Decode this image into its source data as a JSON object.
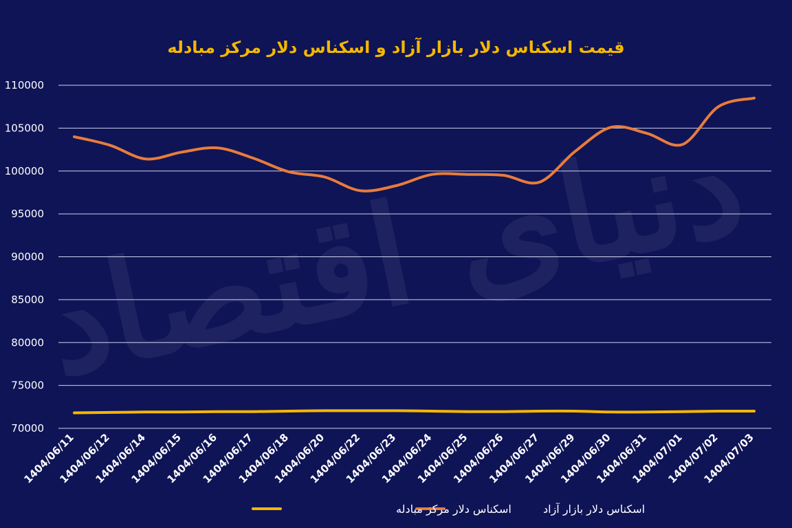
{
  "chart_data": {
    "type": "line",
    "title": "قیمت اسکناس دلار بازار آزاد و اسکناس دلار مرکز مبادله",
    "xlabel": "",
    "ylabel": "",
    "ylim": [
      70000,
      110000
    ],
    "yticks": [
      "110000",
      "105000",
      "100000",
      "95000",
      "90000",
      "85000",
      "80000",
      "75000",
      "70000"
    ],
    "categories": [
      "1404/06/11",
      "1404/06/12",
      "1404/06/14",
      "1404/06/15",
      "1404/06/16",
      "1404/06/17",
      "1404/06/18",
      "1404/06/20",
      "1404/06/22",
      "1404/06/23",
      "1404/06/24",
      "1404/06/25",
      "1404/06/26",
      "1404/06/27",
      "1404/06/29",
      "1404/06/30",
      "1404/06/31",
      "1404/07/01",
      "1404/07/02",
      "1404/07/03"
    ],
    "grid": true,
    "legend_position": "bottom",
    "series": [
      {
        "name": "اسکناس دلار بازار آزاد",
        "color": "#e87c3c",
        "values": [
          104000,
          103000,
          101400,
          102200,
          102700,
          101500,
          99900,
          99300,
          97700,
          98300,
          99600,
          99600,
          99500,
          98700,
          102300,
          105100,
          104400,
          103100,
          107500,
          108500
        ]
      },
      {
        "name": "اسکناس دلار مرکز مبادله",
        "color": "#f5b800",
        "values": [
          71800,
          71850,
          71900,
          71900,
          71950,
          71950,
          72000,
          72050,
          72050,
          72050,
          72000,
          71950,
          71950,
          72000,
          72000,
          71900,
          71900,
          71950,
          72000,
          72000
        ]
      }
    ]
  },
  "watermark": "دنیای اقتصاد"
}
